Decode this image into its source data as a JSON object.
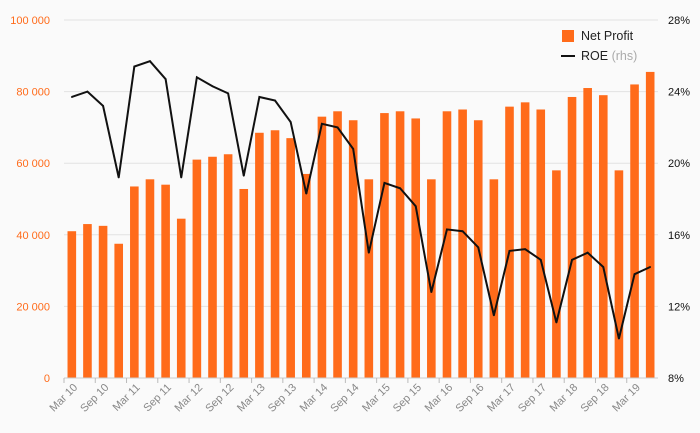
{
  "chart_data": {
    "type": "bar",
    "colors": {
      "bar": "#ff6b1a",
      "line": "#111111",
      "grid": "#e2e2e2",
      "left_axis_text": "#ff6b1a"
    },
    "grid": true,
    "legend_position": "top-right",
    "legend": [
      {
        "label": "Net Profit",
        "suffix": ""
      },
      {
        "label": "ROE",
        "suffix": "(rhs)"
      }
    ],
    "x_tick_labels": [
      "Mar 10",
      "Sep 10",
      "Mar 11",
      "Sep 11",
      "Mar 12",
      "Sep 12",
      "Mar 13",
      "Sep 13",
      "Mar 14",
      "Sep 14",
      "Mar 15",
      "Sep 15",
      "Mar 16",
      "Sep 16",
      "Mar 17",
      "Sep 17",
      "Mar 18",
      "Sep 18",
      "Mar 19"
    ],
    "y_left": {
      "min": 0,
      "max": 100000,
      "ticks": [
        "0",
        "20 000",
        "40 000",
        "60 000",
        "80 000",
        "100 000"
      ]
    },
    "y_right": {
      "min": 8,
      "max": 28,
      "ticks": [
        "8%",
        "12%",
        "16%",
        "20%",
        "24%",
        "28%"
      ]
    },
    "series": [
      {
        "name": "Net Profit",
        "kind": "bar",
        "axis": "left",
        "values": [
          41000,
          43000,
          42500,
          37500,
          53500,
          55500,
          54000,
          44500,
          61000,
          61800,
          62500,
          52800,
          68500,
          69200,
          67000,
          57000,
          73000,
          74500,
          72000,
          55500,
          74000,
          74500,
          72500,
          55500,
          74500,
          75000,
          72000,
          55500,
          75800,
          77000,
          75000,
          58000,
          78500,
          81000,
          79000,
          58000,
          82000,
          85500
        ]
      },
      {
        "name": "ROE",
        "kind": "line",
        "axis": "right",
        "values": [
          23.7,
          24.0,
          23.2,
          19.2,
          25.4,
          25.7,
          24.7,
          19.2,
          24.8,
          24.3,
          23.9,
          19.3,
          23.7,
          23.5,
          22.3,
          18.3,
          22.2,
          22.0,
          20.8,
          15.0,
          18.9,
          18.6,
          17.6,
          12.8,
          16.3,
          16.2,
          15.3,
          11.5,
          15.1,
          15.2,
          14.6,
          11.1,
          14.6,
          15.0,
          14.2,
          10.2,
          13.8,
          14.2
        ]
      }
    ]
  }
}
